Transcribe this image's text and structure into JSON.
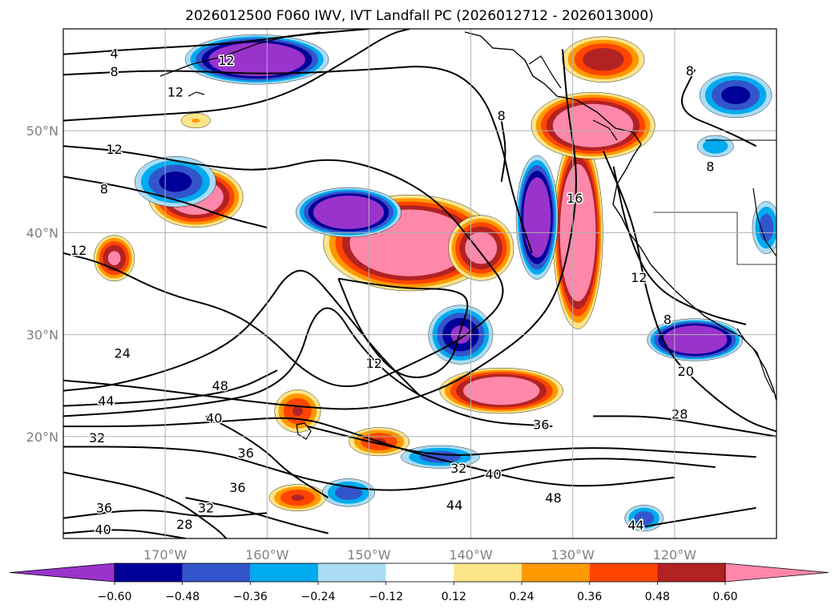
{
  "title": "2026012500 F060 IWV, IVT Landfall PC (2026012712 - 2026013000)",
  "chart_data": {
    "type": "heatmap",
    "title": "2026012500 F060 IWV, IVT Landfall PC (2026012712 - 2026013000)",
    "x_ticks": [
      {
        "value": -170,
        "label": "170°W"
      },
      {
        "value": -160,
        "label": "160°W"
      },
      {
        "value": -150,
        "label": "150°W"
      },
      {
        "value": -140,
        "label": "140°W"
      },
      {
        "value": -130,
        "label": "130°W"
      },
      {
        "value": -120,
        "label": "120°W"
      }
    ],
    "y_ticks": [
      {
        "value": 50,
        "label": "50°N"
      },
      {
        "value": 40,
        "label": "40°N"
      },
      {
        "value": 30,
        "label": "30°N"
      },
      {
        "value": 20,
        "label": "20°N"
      }
    ],
    "xlim": [
      -180,
      -110
    ],
    "ylim": [
      10,
      60
    ],
    "grid": true,
    "colorbar": {
      "levels": [
        -0.6,
        -0.48,
        -0.36,
        -0.24,
        -0.12,
        0.12,
        0.24,
        0.36,
        0.48,
        0.6
      ],
      "labels": [
        "−0.60",
        "−0.48",
        "−0.36",
        "−0.24",
        "−0.12",
        "0.12",
        "0.24",
        "0.36",
        "0.48",
        "0.60"
      ],
      "colors": [
        "#9933cc",
        "#000099",
        "#3355cc",
        "#00aaee",
        "#aaddf5",
        "#ffffff",
        "#fde68a",
        "#ff9900",
        "#ff4400",
        "#b22222",
        "#ff88aa"
      ],
      "extend": "both"
    },
    "features": [
      {
        "sign": 1,
        "lon": -146,
        "lat": 39,
        "rlon": 9,
        "rlat": 5,
        "amp": 1.05
      },
      {
        "sign": 1,
        "lon": -139,
        "lat": 38.5,
        "rlon": 3.5,
        "rlat": 3.5,
        "amp": 0.75
      },
      {
        "sign": 1,
        "lon": -129.5,
        "lat": 40,
        "rlon": 2.6,
        "rlat": 10,
        "amp": 1.1
      },
      {
        "sign": 1,
        "lon": -128,
        "lat": 50.5,
        "rlon": 6.5,
        "rlat": 3.5,
        "amp": 0.95
      },
      {
        "sign": 1,
        "lon": -137,
        "lat": 24.5,
        "rlon": 6.5,
        "rlat": 2.4,
        "amp": 0.9
      },
      {
        "sign": 1,
        "lon": -167,
        "lat": 43.5,
        "rlon": 5,
        "rlat": 3.2,
        "amp": 0.85
      },
      {
        "sign": 1,
        "lon": -175,
        "lat": 37.5,
        "rlon": 2.2,
        "rlat": 2.5,
        "amp": 0.65
      },
      {
        "sign": 1,
        "lon": -157,
        "lat": 22.5,
        "rlon": 2.6,
        "rlat": 2.4,
        "amp": 0.5
      },
      {
        "sign": 1,
        "lon": -149,
        "lat": 19.5,
        "rlon": 3.4,
        "rlat": 1.6,
        "amp": 0.5
      },
      {
        "sign": 1,
        "lon": -157,
        "lat": 14,
        "rlon": 3.2,
        "rlat": 1.5,
        "amp": 0.5
      },
      {
        "sign": 1,
        "lon": -127,
        "lat": 57,
        "rlon": 4.5,
        "rlat": 2.5,
        "amp": 0.6
      },
      {
        "sign": 1,
        "lon": -167,
        "lat": 51,
        "rlon": 2,
        "rlat": 1,
        "amp": 0.25
      },
      {
        "sign": -1,
        "lon": -152,
        "lat": 42,
        "rlon": 5.5,
        "rlat": 2.6,
        "amp": 1.0
      },
      {
        "sign": -1,
        "lon": -161,
        "lat": 57,
        "rlon": 7.5,
        "rlat": 2.6,
        "amp": 1.0
      },
      {
        "sign": -1,
        "lon": -133.5,
        "lat": 41.5,
        "rlon": 2.2,
        "rlat": 6.5,
        "amp": 0.95
      },
      {
        "sign": -1,
        "lon": -118,
        "lat": 29.5,
        "rlon": 5,
        "rlat": 2.2,
        "amp": 1.0
      },
      {
        "sign": -1,
        "lon": -169,
        "lat": 45,
        "rlon": 4.5,
        "rlat": 2.8,
        "amp": 0.55
      },
      {
        "sign": -1,
        "lon": -141,
        "lat": 30,
        "rlon": 3.5,
        "rlat": 3.2,
        "amp": 0.65
      },
      {
        "sign": -1,
        "lon": -143,
        "lat": 18,
        "rlon": 4.5,
        "rlat": 1.3,
        "amp": 0.45
      },
      {
        "sign": -1,
        "lon": -114,
        "lat": 53.5,
        "rlon": 4,
        "rlat": 2.5,
        "amp": 0.55
      },
      {
        "sign": -1,
        "lon": -111,
        "lat": 40.5,
        "rlon": 1.6,
        "rlat": 3,
        "amp": 0.45
      },
      {
        "sign": -1,
        "lon": -116,
        "lat": 48.5,
        "rlon": 2.2,
        "rlat": 1.3,
        "amp": 0.35
      },
      {
        "sign": -1,
        "lon": -152,
        "lat": 14.5,
        "rlon": 3,
        "rlat": 1.6,
        "amp": 0.45
      },
      {
        "sign": -1,
        "lon": -123,
        "lat": 12,
        "rlon": 2.2,
        "rlat": 1.5,
        "amp": 0.45
      }
    ],
    "contours": [
      {
        "label": "4",
        "points": [
          [
            -180,
            57.5
          ],
          [
            -173,
            58
          ],
          [
            -164,
            58.5
          ],
          [
            -156,
            59.5
          ],
          [
            -150,
            60
          ]
        ]
      },
      {
        "label": "8",
        "points": [
          [
            -180,
            55.5
          ],
          [
            -170,
            56
          ],
          [
            -160,
            55.5
          ],
          [
            -150,
            56
          ],
          [
            -143,
            56.5
          ],
          [
            -139,
            54
          ],
          [
            -137,
            49
          ],
          [
            -136,
            44
          ],
          [
            -134,
            38
          ]
        ]
      },
      {
        "label": "12",
        "points": [
          [
            -180,
            48.5
          ],
          [
            -174,
            48
          ],
          [
            -166,
            46.5
          ],
          [
            -160,
            46
          ],
          [
            -154,
            47.5
          ],
          [
            -148,
            46
          ],
          [
            -143,
            43
          ],
          [
            -139,
            38
          ],
          [
            -136,
            34
          ],
          [
            -140,
            30
          ],
          [
            -147,
            26.5
          ],
          [
            -152,
            24.5
          ],
          [
            -156,
            26
          ],
          [
            -160,
            30
          ],
          [
            -164,
            32.5
          ],
          [
            -170,
            34
          ],
          [
            -176,
            37
          ],
          [
            -180,
            38
          ]
        ]
      },
      {
        "label": "12",
        "points": [
          [
            -180,
            51
          ],
          [
            -172,
            51.5
          ],
          [
            -164,
            52
          ],
          [
            -158,
            53.5
          ],
          [
            -152,
            57
          ],
          [
            -148,
            59.5
          ],
          [
            -146,
            60
          ]
        ]
      },
      {
        "label": "8",
        "points": [
          [
            -180,
            45.5
          ],
          [
            -174,
            44.5
          ],
          [
            -168,
            43
          ],
          [
            -164,
            41.5
          ],
          [
            -160,
            40.5
          ]
        ]
      },
      {
        "label": "8",
        "points": [
          [
            -137,
            51
          ],
          [
            -136.5,
            48
          ],
          [
            -137,
            45
          ]
        ]
      },
      {
        "label": "16",
        "points": [
          [
            -131,
            58
          ],
          [
            -130.5,
            52
          ],
          [
            -129.5,
            46
          ],
          [
            -130,
            40
          ],
          [
            -131.5,
            34
          ],
          [
            -134,
            30.5
          ],
          [
            -138,
            27.5
          ],
          [
            -143,
            24.5
          ],
          [
            -150,
            22.5
          ],
          [
            -158,
            23
          ],
          [
            -166,
            24
          ],
          [
            -174,
            25
          ],
          [
            -180,
            25.5
          ]
        ]
      },
      {
        "label": "24",
        "points": [
          [
            -180,
            24.5
          ],
          [
            -175,
            25
          ],
          [
            -168,
            27
          ],
          [
            -163,
            29.5
          ],
          [
            -160,
            33
          ],
          [
            -158,
            36
          ],
          [
            -156,
            36.5
          ],
          [
            -153,
            33
          ],
          [
            -149,
            28
          ],
          [
            -145,
            24
          ]
        ]
      },
      {
        "label": "44",
        "points": [
          [
            -180,
            22
          ],
          [
            -172,
            22.5
          ],
          [
            -164,
            23.5
          ],
          [
            -160,
            24.5
          ],
          [
            -157,
            27
          ],
          [
            -155.5,
            32
          ],
          [
            -153.5,
            33
          ],
          [
            -151,
            29
          ],
          [
            -147,
            25
          ],
          [
            -140,
            21.5
          ],
          [
            -132,
            21
          ]
        ]
      },
      {
        "label": "48",
        "points": [
          [
            -180,
            23
          ],
          [
            -170,
            23.5
          ],
          [
            -163,
            24.5
          ],
          [
            -159,
            26.5
          ]
        ]
      },
      {
        "label": "40",
        "points": [
          [
            -180,
            21
          ],
          [
            -172,
            21
          ],
          [
            -164,
            21.5
          ],
          [
            -157,
            22
          ],
          [
            -152,
            20.5
          ],
          [
            -146,
            18.5
          ],
          [
            -140,
            17
          ],
          [
            -134,
            15.5
          ],
          [
            -128,
            15
          ],
          [
            -120,
            16
          ]
        ]
      },
      {
        "label": "36",
        "points": [
          [
            -156,
            21
          ],
          [
            -150,
            19.5
          ],
          [
            -143,
            18
          ],
          [
            -136,
            18.5
          ],
          [
            -128,
            19
          ],
          [
            -120,
            18.5
          ],
          [
            -112,
            18
          ]
        ]
      },
      {
        "label": "32",
        "points": [
          [
            -180,
            19
          ],
          [
            -172,
            19
          ],
          [
            -165,
            18.5
          ],
          [
            -160,
            17
          ],
          [
            -155,
            15.5
          ],
          [
            -148,
            14.5
          ],
          [
            -141,
            15.5
          ],
          [
            -134,
            17.5
          ],
          [
            -126,
            18
          ],
          [
            -116,
            17
          ]
        ]
      },
      {
        "label": "36",
        "points": [
          [
            -166,
            22
          ],
          [
            -163,
            20.5
          ],
          [
            -160,
            18.5
          ],
          [
            -158,
            16.5
          ],
          [
            -154,
            14
          ]
        ]
      },
      {
        "label": "32",
        "points": [
          [
            -168,
            14
          ],
          [
            -163,
            13
          ],
          [
            -158,
            11.5
          ],
          [
            -154,
            10.5
          ]
        ]
      },
      {
        "label": "36",
        "points": [
          [
            -180,
            12
          ],
          [
            -172,
            13
          ],
          [
            -166,
            12
          ],
          [
            -160,
            12.5
          ]
        ]
      },
      {
        "label": "40",
        "points": [
          [
            -180,
            10.5
          ],
          [
            -174,
            11
          ],
          [
            -168,
            10
          ]
        ]
      },
      {
        "label": "28",
        "points": [
          [
            -180,
            16.5
          ],
          [
            -170,
            14.5
          ],
          [
            -165,
            11
          ],
          [
            -164,
            10
          ]
        ]
      },
      {
        "label": "28",
        "points": [
          [
            -128,
            22
          ],
          [
            -122,
            22
          ],
          [
            -116,
            21
          ],
          [
            -110,
            20
          ]
        ]
      },
      {
        "label": "20",
        "points": [
          [
            -127,
            48
          ],
          [
            -124,
            41
          ],
          [
            -123,
            35
          ],
          [
            -121,
            28.5
          ],
          [
            -117,
            24.5
          ],
          [
            -113,
            21.5
          ],
          [
            -110,
            20.5
          ]
        ]
      },
      {
        "label": "12",
        "points": [
          [
            -126,
            46.5
          ],
          [
            -124.5,
            39.5
          ],
          [
            -122,
            34.5
          ],
          [
            -117,
            32
          ],
          [
            -113,
            31
          ]
        ]
      },
      {
        "label": "44",
        "points": [
          [
            -124,
            11
          ],
          [
            -118,
            12
          ],
          [
            -112,
            13
          ]
        ]
      },
      {
        "label": "8",
        "points": [
          [
            -118,
            56
          ],
          [
            -120,
            52
          ],
          [
            -115,
            50
          ],
          [
            -112,
            48.5
          ]
        ]
      },
      {
        "label": "",
        "points": [
          [
            -153,
            35.5
          ],
          [
            -151,
            30.5
          ],
          [
            -148,
            26.5
          ],
          [
            -145,
            25.5
          ],
          [
            -142,
            27
          ],
          [
            -141,
            30.5
          ],
          [
            -140,
            33.5
          ],
          [
            -142,
            34.5
          ],
          [
            -146,
            34.5
          ],
          [
            -150,
            35
          ],
          [
            -153,
            35.5
          ]
        ]
      }
    ],
    "contour_labels": [
      {
        "text": "4",
        "lon": -175,
        "lat": 57.5
      },
      {
        "text": "8",
        "lon": -175,
        "lat": 55.7
      },
      {
        "text": "12",
        "lon": -164,
        "lat": 56.8
      },
      {
        "text": "12",
        "lon": -169,
        "lat": 53.7
      },
      {
        "text": "8",
        "lon": -137,
        "lat": 51.4
      },
      {
        "text": "12",
        "lon": -175,
        "lat": 48.1
      },
      {
        "text": "8",
        "lon": -176,
        "lat": 44.2
      },
      {
        "text": "12",
        "lon": -178.5,
        "lat": 38.2
      },
      {
        "text": "16",
        "lon": -129.8,
        "lat": 43.3
      },
      {
        "text": "8",
        "lon": -118.5,
        "lat": 55.8
      },
      {
        "text": "8",
        "lon": -116.5,
        "lat": 46.4
      },
      {
        "text": "12",
        "lon": -123.5,
        "lat": 35.5
      },
      {
        "text": "8",
        "lon": -120.7,
        "lat": 31.4
      },
      {
        "text": "24",
        "lon": -174.2,
        "lat": 28.1
      },
      {
        "text": "12",
        "lon": -149.5,
        "lat": 27.1
      },
      {
        "text": "48",
        "lon": -164.6,
        "lat": 24.9
      },
      {
        "text": "44",
        "lon": -175.8,
        "lat": 23.4
      },
      {
        "text": "40",
        "lon": -165.2,
        "lat": 21.7
      },
      {
        "text": "20",
        "lon": -118.9,
        "lat": 26.3
      },
      {
        "text": "28",
        "lon": -119.5,
        "lat": 22.1
      },
      {
        "text": "36",
        "lon": -133.1,
        "lat": 21.1
      },
      {
        "text": "32",
        "lon": -176.7,
        "lat": 19.8
      },
      {
        "text": "36",
        "lon": -162.1,
        "lat": 18.3
      },
      {
        "text": "32",
        "lon": -141.2,
        "lat": 16.8
      },
      {
        "text": "40",
        "lon": -137.8,
        "lat": 16.2
      },
      {
        "text": "36",
        "lon": -162.9,
        "lat": 14.9
      },
      {
        "text": "48",
        "lon": -131.9,
        "lat": 13.9
      },
      {
        "text": "44",
        "lon": -141.6,
        "lat": 13.2
      },
      {
        "text": "36",
        "lon": -176,
        "lat": 12.9
      },
      {
        "text": "32",
        "lon": -166,
        "lat": 12.9
      },
      {
        "text": "28",
        "lon": -168.1,
        "lat": 11.3
      },
      {
        "text": "44",
        "lon": -123.8,
        "lat": 11.2
      },
      {
        "text": "40",
        "lon": -176.1,
        "lat": 10.8
      }
    ]
  }
}
